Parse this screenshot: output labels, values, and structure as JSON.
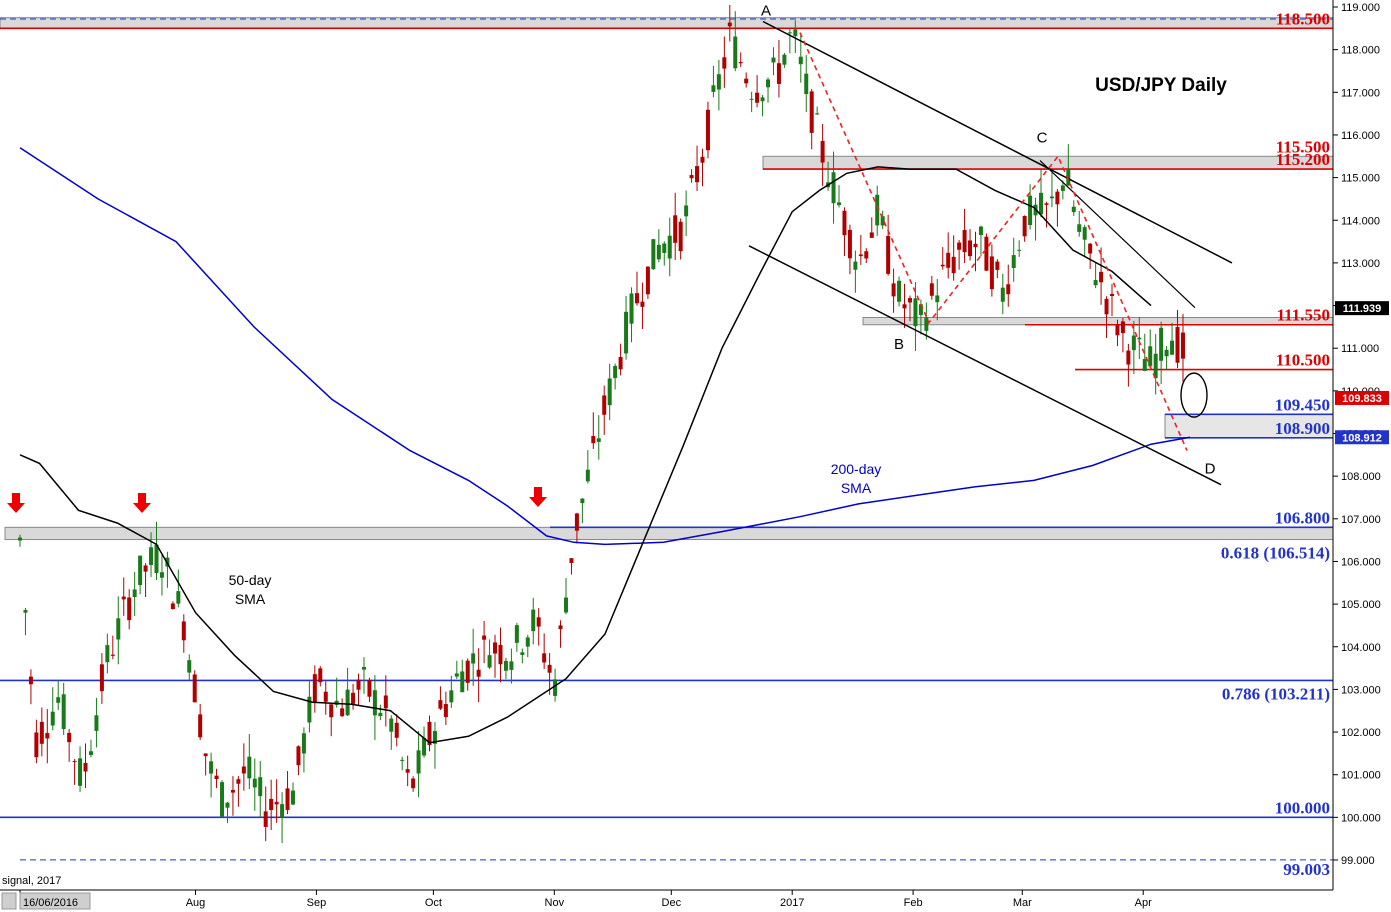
{
  "chart_data": {
    "type": "candlestick",
    "title": "USD/JPY Daily",
    "ylim": [
      99.0,
      119.0
    ],
    "y_ticks": [
      "119.000",
      "118.000",
      "117.000",
      "116.000",
      "115.000",
      "114.000",
      "113.000",
      "112.000",
      "111.000",
      "110.000",
      "109.000",
      "108.000",
      "107.000",
      "106.000",
      "105.000",
      "104.000",
      "103.000",
      "102.000",
      "101.000",
      "100.000",
      "99.000"
    ],
    "y_tick_values": [
      119,
      118,
      117,
      116,
      115,
      114,
      113,
      112,
      111,
      110,
      109,
      108,
      107,
      106,
      105,
      104,
      103,
      102,
      101,
      100,
      99
    ],
    "x_labels": [
      "16/06/2016",
      "Aug",
      "Sep",
      "Oct",
      "Nov",
      "Dec",
      "2017",
      "Feb",
      "Mar",
      "Apr"
    ],
    "x_label_days": [
      0,
      45,
      76,
      106,
      137,
      167,
      198,
      229,
      257,
      288
    ],
    "footer_fragment": "signal, 2017",
    "price_tags": [
      {
        "text": "111.939",
        "value": 111.939,
        "color": "#000000"
      },
      {
        "text": "109.833",
        "value": 109.833,
        "color": "#dd0000"
      },
      {
        "text": "108.912",
        "value": 108.912,
        "color": "#2233cc"
      }
    ],
    "levels": [
      {
        "label": "118.500",
        "value": 118.5,
        "color": "#dd0000",
        "style": "solid"
      },
      {
        "label": "115.500",
        "value": 115.5,
        "color": "#dd0000",
        "style": "box"
      },
      {
        "label": "115.200",
        "value": 115.2,
        "color": "#dd0000",
        "style": "solid"
      },
      {
        "label": "111.550",
        "value": 111.55,
        "color": "#dd0000",
        "style": "solid"
      },
      {
        "label": "110.500",
        "value": 110.5,
        "color": "#dd0000",
        "style": "solid"
      },
      {
        "label": "109.450",
        "value": 109.45,
        "color": "#2233cc",
        "style": "solid"
      },
      {
        "label": "108.900",
        "value": 108.9,
        "color": "#2233cc",
        "style": "solid"
      },
      {
        "label": "106.800",
        "value": 106.8,
        "color": "#2233cc",
        "style": "solid"
      },
      {
        "label": "0.618 (106.514)",
        "value": 106.514,
        "color": "#2233cc",
        "style": "box"
      },
      {
        "label": "0.786 (103.211)",
        "value": 103.211,
        "color": "#2233cc",
        "style": "solid"
      },
      {
        "label": "100.000",
        "value": 100.0,
        "color": "#2233cc",
        "style": "solid"
      },
      {
        "label": "99.003",
        "value": 99.003,
        "color": "#2233cc",
        "style": "dashed"
      }
    ],
    "abcd_points": [
      {
        "label": "A",
        "value": 118.66
      },
      {
        "label": "B",
        "value": 111.59
      },
      {
        "label": "C",
        "value": 115.5
      },
      {
        "label": "D",
        "value": 108.13
      }
    ],
    "annotations": {
      "sma50_label": [
        "50-day",
        "SMA"
      ],
      "sma200_label": [
        "200-day",
        "SMA"
      ]
    },
    "series": [
      {
        "name": "200-day SMA",
        "color": "#0000cc",
        "points": [
          [
            0,
            115.7
          ],
          [
            20,
            114.5
          ],
          [
            40,
            113.5
          ],
          [
            60,
            111.5
          ],
          [
            80,
            109.8
          ],
          [
            100,
            108.6
          ],
          [
            115,
            107.9
          ],
          [
            125,
            107.3
          ],
          [
            135,
            106.6
          ],
          [
            142,
            106.45
          ],
          [
            150,
            106.4
          ],
          [
            165,
            106.45
          ],
          [
            180,
            106.7
          ],
          [
            200,
            107.05
          ],
          [
            215,
            107.35
          ],
          [
            230,
            107.55
          ],
          [
            245,
            107.75
          ],
          [
            260,
            107.9
          ],
          [
            275,
            108.25
          ],
          [
            290,
            108.75
          ],
          [
            300,
            108.91
          ]
        ]
      },
      {
        "name": "50-day SMA",
        "color": "#000000",
        "points": [
          [
            0,
            108.5
          ],
          [
            5,
            108.3
          ],
          [
            15,
            107.2
          ],
          [
            25,
            106.9
          ],
          [
            35,
            106.4
          ],
          [
            45,
            104.8
          ],
          [
            55,
            103.8
          ],
          [
            65,
            102.95
          ],
          [
            75,
            102.7
          ],
          [
            85,
            102.65
          ],
          [
            95,
            102.5
          ],
          [
            105,
            101.75
          ],
          [
            115,
            101.9
          ],
          [
            125,
            102.35
          ],
          [
            135,
            102.95
          ],
          [
            140,
            103.25
          ],
          [
            150,
            104.3
          ],
          [
            160,
            106.5
          ],
          [
            170,
            108.7
          ],
          [
            180,
            111.0
          ],
          [
            190,
            112.8
          ],
          [
            198,
            114.2
          ],
          [
            205,
            114.7
          ],
          [
            212,
            115.1
          ],
          [
            220,
            115.25
          ],
          [
            228,
            115.2
          ],
          [
            240,
            115.2
          ],
          [
            250,
            114.7
          ],
          [
            260,
            114.3
          ],
          [
            270,
            113.3
          ],
          [
            280,
            112.8
          ],
          [
            290,
            112.0
          ]
        ]
      }
    ]
  }
}
